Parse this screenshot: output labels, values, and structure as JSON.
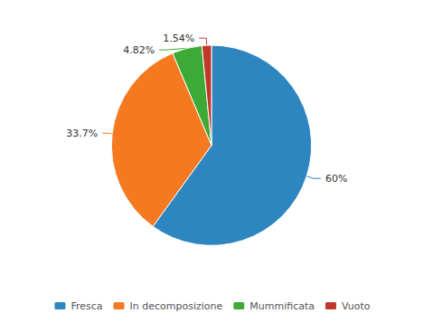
{
  "chart_data": {
    "type": "pie",
    "categories": [
      "Fresca",
      "In decomposizione",
      "Mummificata",
      "Vuoto"
    ],
    "values": [
      60.0,
      33.7,
      4.82,
      1.54
    ],
    "value_labels": [
      "60%",
      "33.7%",
      "4.82%",
      "1.54%"
    ],
    "colors": [
      "#2E86C1",
      "#F47920",
      "#3DAA35",
      "#C0392B"
    ],
    "data_labels": true,
    "legend": "bottom"
  }
}
